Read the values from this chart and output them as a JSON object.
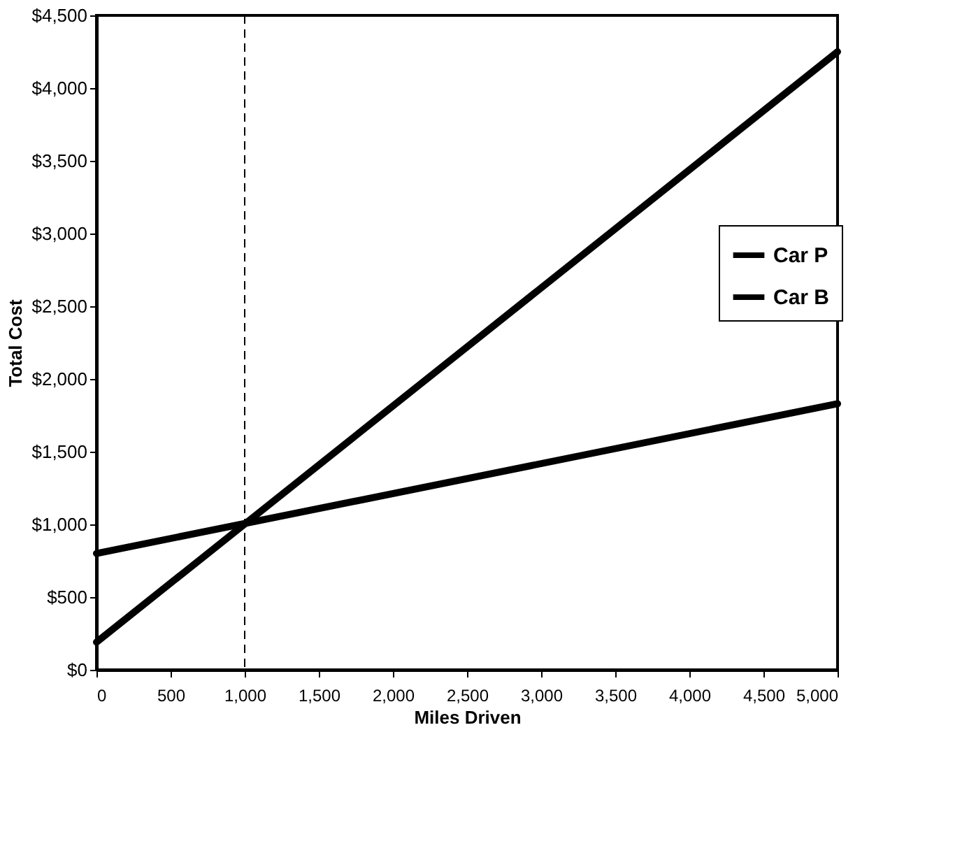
{
  "chart_data": {
    "type": "line",
    "xlabel": "Miles Driven",
    "ylabel": "Total Cost",
    "series": [
      {
        "name": "Car P",
        "color": "#000000",
        "values": [
          800,
          1830
        ]
      },
      {
        "name": "Car B",
        "color": "#000000",
        "values": [
          190,
          4250
        ]
      }
    ],
    "x": [
      0,
      5000
    ],
    "xlim": [
      0,
      5000
    ],
    "xticks": [
      0,
      500,
      {
        "value": 1000,
        "label": "1,000"
      },
      {
        "value": 1500,
        "label": "1,500"
      },
      {
        "value": 2000,
        "label": "2,000"
      },
      {
        "value": 2500,
        "label": "2,500"
      },
      {
        "value": 3000,
        "label": "3,000"
      },
      {
        "value": 3500,
        "label": "3,500"
      },
      {
        "value": 4000,
        "label": "4,000"
      },
      {
        "value": 4500,
        "label": "4,500"
      },
      {
        "value": 5000,
        "label": "5,000"
      }
    ],
    "ylim": [
      0,
      4500
    ],
    "yticks": [
      {
        "value": 0,
        "label": "$0"
      },
      {
        "value": 500,
        "label": "$500"
      },
      {
        "value": 1000,
        "label": "$1,000"
      },
      {
        "value": 1500,
        "label": "$1,500"
      },
      {
        "value": 2000,
        "label": "$2,000"
      },
      {
        "value": 2500,
        "label": "$2,500"
      },
      {
        "value": 3000,
        "label": "$3,000"
      },
      {
        "value": 3500,
        "label": "$3,500"
      },
      {
        "value": 4000,
        "label": "$4,000"
      },
      {
        "value": 4500,
        "label": "$4,500"
      }
    ],
    "ref_lines": [
      {
        "axis": "x",
        "value": 1000,
        "color": "#000000",
        "line_style": "dashed"
      }
    ],
    "legend": "right",
    "grid": false,
    "line_style": "solid",
    "marker": "none"
  }
}
